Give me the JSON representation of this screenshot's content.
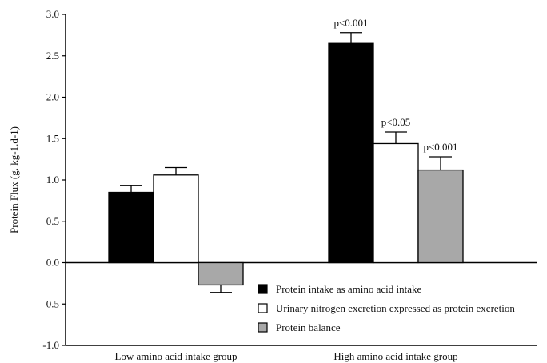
{
  "chart_data": {
    "type": "bar",
    "title": "",
    "ylabel": "Protein Flux (g. kg-1.d-1)",
    "xlabel": "",
    "ylim": [
      -1.0,
      3.0
    ],
    "yticks": [
      "3.0",
      "2.5",
      "2.0",
      "1.5",
      "1.0",
      "0.5",
      "0.0",
      "-0.5",
      "-1.0"
    ],
    "grid": false,
    "legend_position": "bottom-right",
    "categories": [
      "Low amino acid intake group",
      "High amino acid intake group"
    ],
    "series": [
      {
        "name": "Protein intake as amino acid intake",
        "color": "#000000",
        "values": [
          0.85,
          2.65
        ],
        "errors": [
          0.08,
          0.13
        ],
        "annotations": [
          "",
          "p<0.001"
        ]
      },
      {
        "name": "Urinary nitrogen excretion expressed as protein excretion",
        "color": "#ffffff",
        "values": [
          1.06,
          1.44
        ],
        "errors": [
          0.09,
          0.14
        ],
        "annotations": [
          "",
          "p<0.05"
        ]
      },
      {
        "name": "Protein balance",
        "color": "#a8a8a8",
        "values": [
          -0.27,
          1.12
        ],
        "errors": [
          0.09,
          0.16
        ],
        "annotations": [
          "",
          "p<0.001"
        ]
      }
    ]
  }
}
